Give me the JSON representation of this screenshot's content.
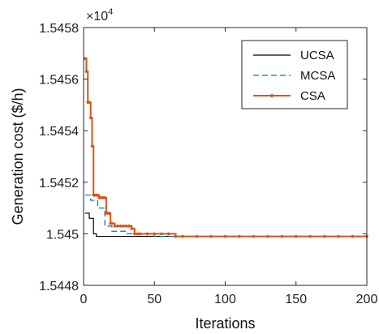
{
  "chart_data": {
    "type": "line",
    "xlabel": "Iterations",
    "ylabel": "Generation cost ($/h)",
    "exponent_base": "×10",
    "exponent_power": "4",
    "xlim": [
      0,
      200
    ],
    "ylim": [
      1.5448,
      1.5458
    ],
    "xticks": [
      0,
      50,
      100,
      150,
      200
    ],
    "xtick_labels": [
      "0",
      "50",
      "100",
      "150",
      "200"
    ],
    "yticks": [
      1.5448,
      1.545,
      1.5452,
      1.5454,
      1.5456,
      1.5458
    ],
    "ytick_labels": [
      "1.5448",
      "1.545",
      "1.5452",
      "1.5454",
      "1.5456",
      "1.5458"
    ],
    "grid": false,
    "legend_position": "top-right",
    "series": [
      {
        "name": "UCSA",
        "color": "#000000",
        "style": "solid",
        "marker": "none",
        "x": [
          1,
          2,
          3,
          4,
          5,
          6,
          7,
          8,
          9,
          10,
          12,
          15,
          20,
          25,
          30,
          35,
          40,
          50,
          60,
          100,
          150,
          200
        ],
        "y": [
          1.54508,
          1.54508,
          1.54508,
          1.54506,
          1.54506,
          1.54506,
          1.545,
          1.545,
          1.54499,
          1.54499,
          1.54499,
          1.54499,
          1.54499,
          1.54499,
          1.54499,
          1.54499,
          1.54499,
          1.54499,
          1.54499,
          1.54499,
          1.54499,
          1.54499
        ]
      },
      {
        "name": "MCSA",
        "color": "#0072BD",
        "style": "dashed",
        "marker": "none",
        "x": [
          1,
          2,
          3,
          4,
          5,
          6,
          7,
          8,
          9,
          10,
          12,
          14,
          15,
          18,
          20,
          25,
          30,
          35,
          40,
          50,
          60,
          100,
          150,
          200
        ],
        "y": [
          1.54515,
          1.54515,
          1.54515,
          1.54515,
          1.54513,
          1.54513,
          1.54513,
          1.54513,
          1.54513,
          1.5451,
          1.5451,
          1.5451,
          1.54503,
          1.54503,
          1.54501,
          1.54501,
          1.545,
          1.545,
          1.545,
          1.54499,
          1.54499,
          1.54499,
          1.54499,
          1.54499
        ]
      },
      {
        "name": "CSA",
        "color": "#D95319",
        "style": "solid",
        "marker": "dot",
        "x": [
          1,
          2,
          3,
          4,
          5,
          6,
          7,
          8,
          9,
          10,
          11,
          12,
          13,
          14,
          15,
          16,
          17,
          18,
          19,
          20,
          22,
          24,
          26,
          28,
          30,
          32,
          34,
          36,
          38,
          40,
          45,
          50,
          55,
          60,
          65,
          70,
          80,
          90,
          100,
          110,
          120,
          130,
          140,
          150,
          160,
          170,
          180,
          190,
          200
        ],
        "y": [
          1.54568,
          1.54563,
          1.54551,
          1.54551,
          1.54545,
          1.54534,
          1.54515,
          1.54515,
          1.54515,
          1.54515,
          1.54514,
          1.54514,
          1.54514,
          1.54514,
          1.54514,
          1.54508,
          1.54508,
          1.54508,
          1.54504,
          1.54504,
          1.54503,
          1.54503,
          1.54503,
          1.54503,
          1.54503,
          1.54503,
          1.54502,
          1.545,
          1.545,
          1.545,
          1.545,
          1.545,
          1.545,
          1.545,
          1.54499,
          1.54499,
          1.54499,
          1.54499,
          1.54499,
          1.54499,
          1.54499,
          1.54499,
          1.54499,
          1.54499,
          1.54499,
          1.54499,
          1.54499,
          1.54499,
          1.54499
        ]
      }
    ]
  }
}
